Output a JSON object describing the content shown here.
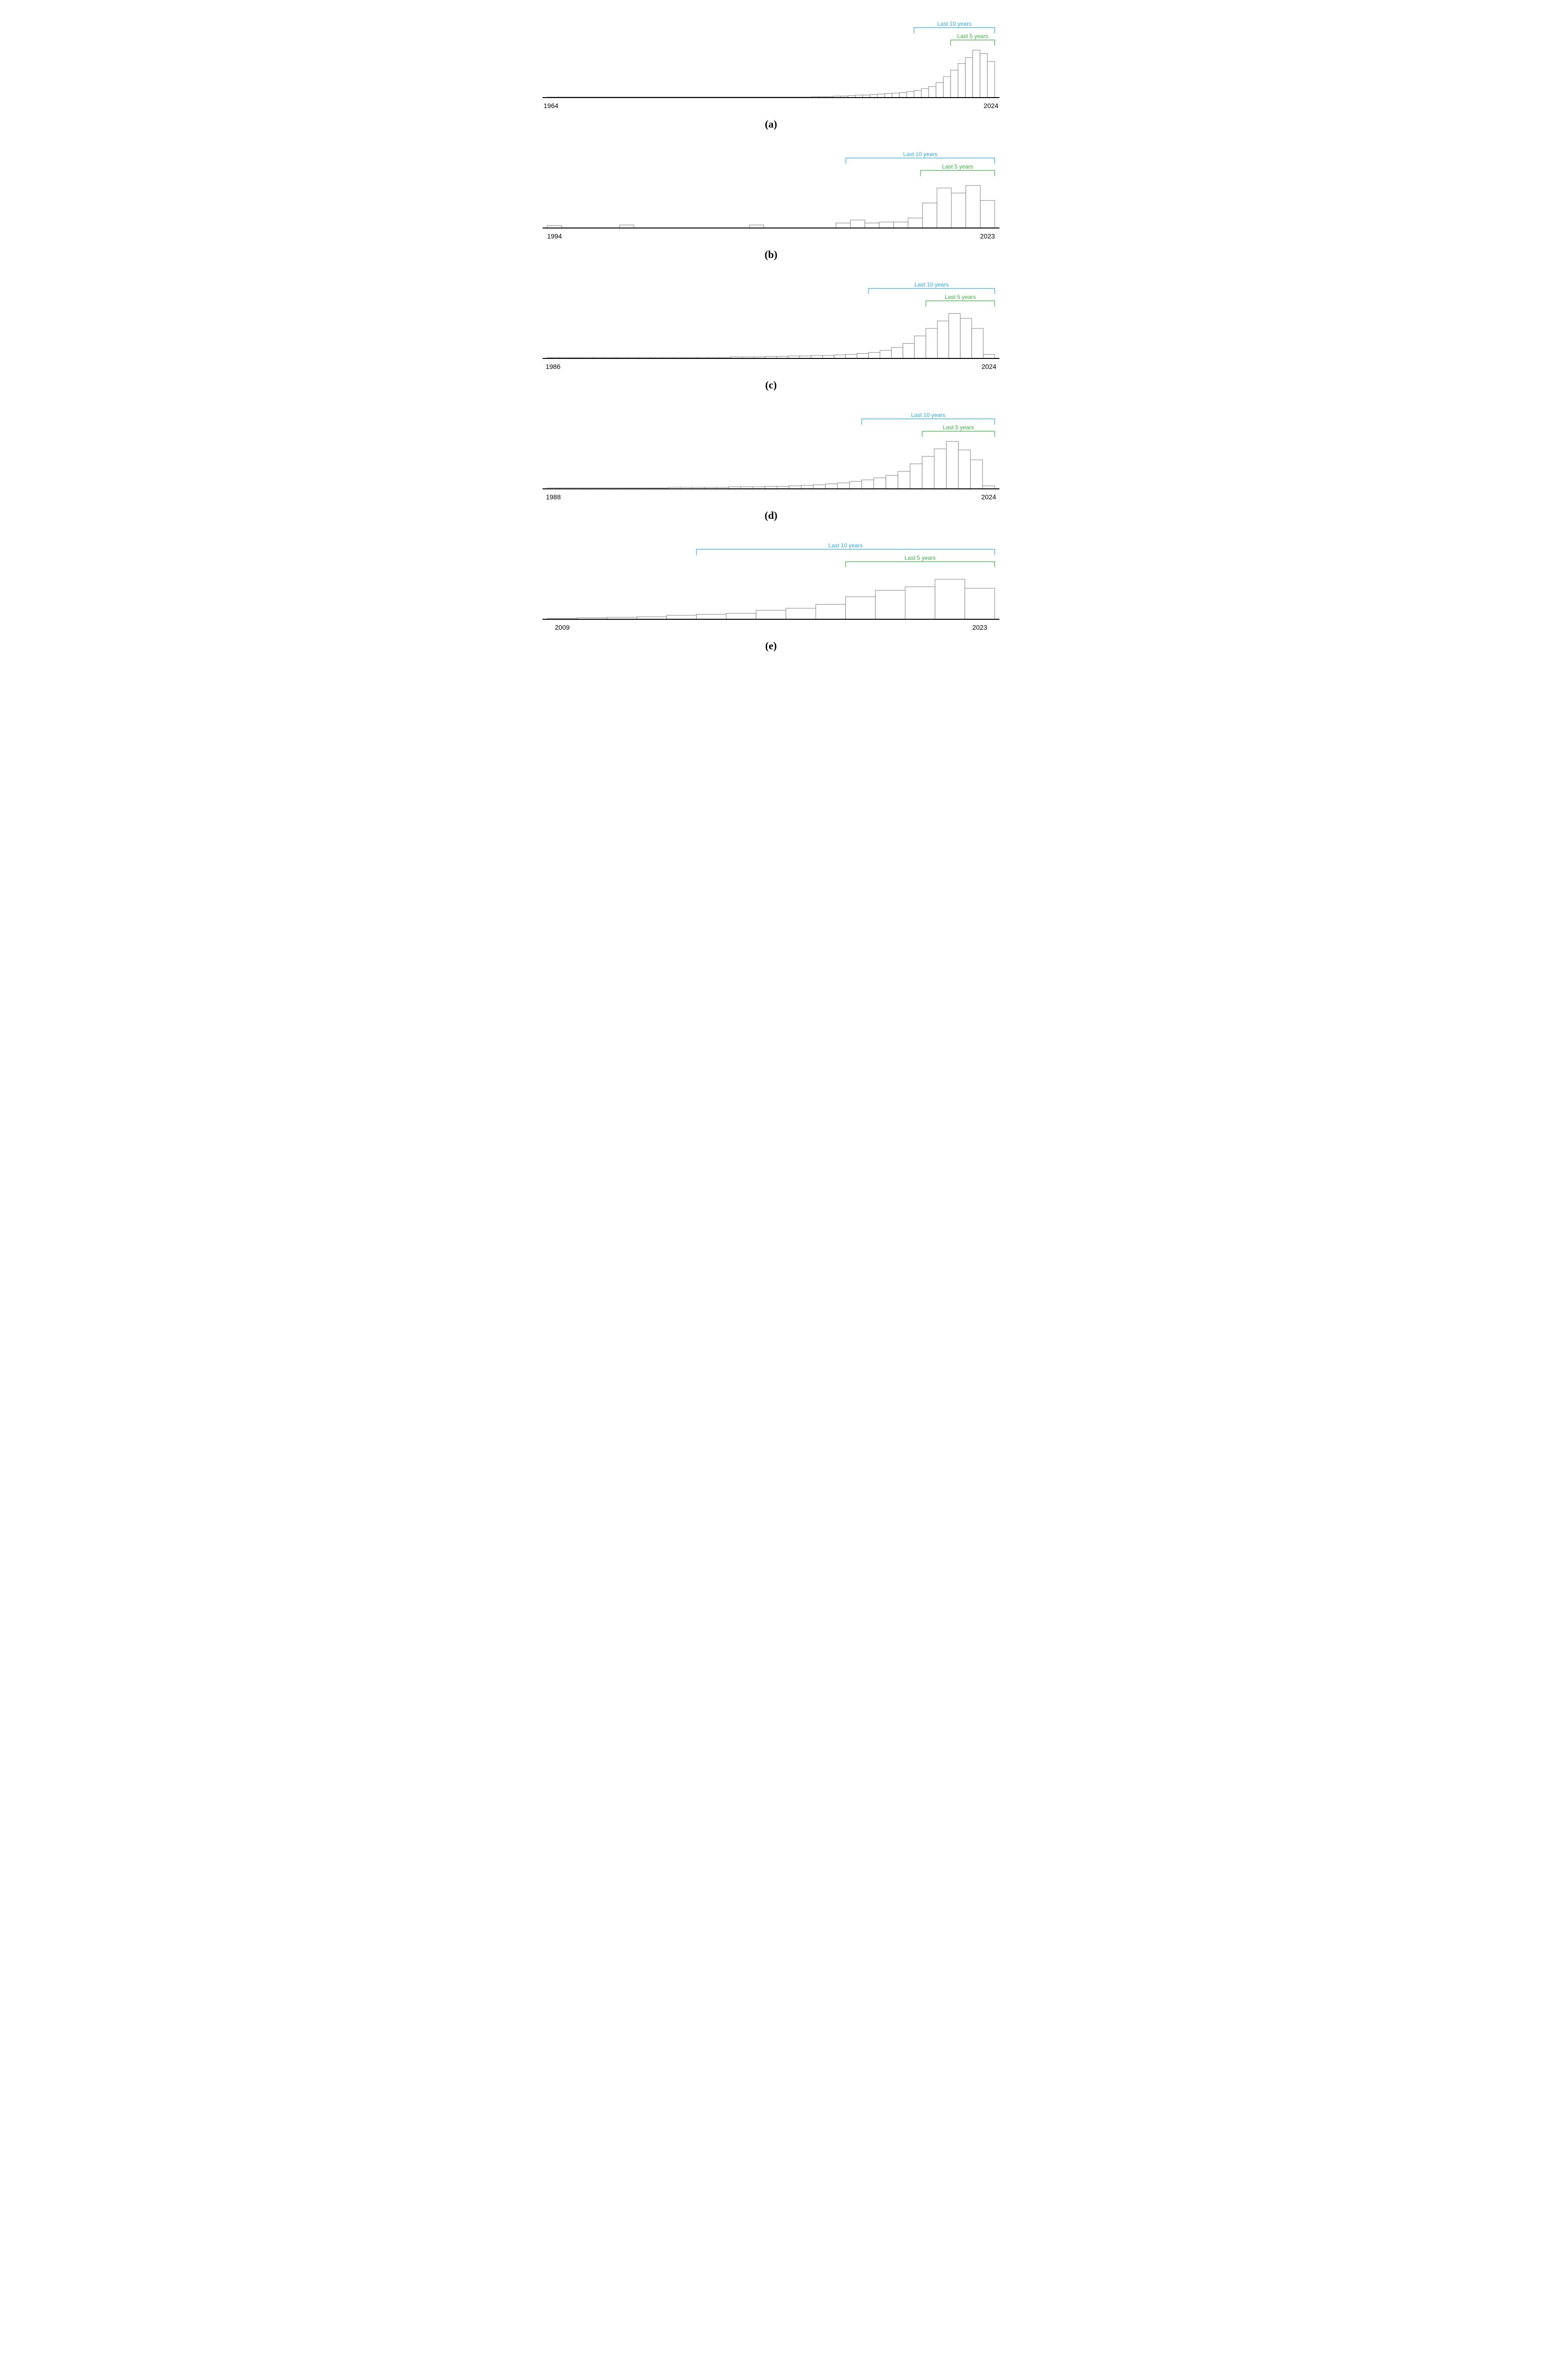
{
  "global": {
    "background_color": "#ffffff",
    "axis_color": "#000000",
    "axis_stroke_width": 2,
    "bar_fill": "#ffffff",
    "bar_stroke": "#808080",
    "bar_stroke_width": 1,
    "tick_font_size": 14,
    "tick_font_family": "Segoe UI, Tahoma, sans-serif",
    "tick_color": "#000000",
    "panel_label_font_size": 22,
    "panel_label_font_family": "Book Antiqua, Palatino, serif",
    "bracket_inner_color": "#3cb043",
    "bracket_outer_color": "#29abe2",
    "bracket_stroke_width": 1.2,
    "bracket_label_font_size": 12,
    "bracket_inner_label": "Last 5 years",
    "bracket_outer_label": "Last 10 years"
  },
  "panels": [
    {
      "id": "a",
      "label": "(a)",
      "type": "bar",
      "x_start": 1964,
      "x_end": 2024,
      "ylim": [
        0,
        100
      ],
      "bracket_outer_start": 2014,
      "bracket_inner_start": 2019,
      "values": [
        1,
        1,
        1,
        1,
        1,
        1,
        1,
        1,
        1,
        1,
        1,
        1,
        1,
        1,
        1,
        1,
        1,
        1,
        1,
        1,
        1,
        1,
        1,
        1,
        1,
        1,
        1,
        1,
        1,
        1,
        1,
        1,
        1,
        1,
        1,
        1,
        2,
        2,
        2,
        3,
        3,
        4,
        5,
        5,
        6,
        7,
        8,
        9,
        10,
        12,
        14,
        18,
        22,
        30,
        42,
        55,
        68,
        80,
        95,
        88,
        72
      ],
      "x_tick_left": "1964",
      "x_tick_right": "2024"
    },
    {
      "id": "b",
      "label": "(b)",
      "type": "bar",
      "x_start": 1994,
      "x_end": 2023,
      "ylim": [
        0,
        100
      ],
      "bracket_outer_start": 2014,
      "bracket_inner_start": 2019,
      "values": [
        5,
        0,
        0,
        0,
        0,
        6,
        0,
        0,
        0,
        0,
        0,
        0,
        0,
        0,
        6,
        0,
        0,
        0,
        0,
        0,
        10,
        16,
        10,
        12,
        12,
        20,
        50,
        80,
        70,
        85,
        55
      ],
      "x_tick_left": "1994",
      "x_tick_right": "2023"
    },
    {
      "id": "c",
      "label": "(c)",
      "type": "bar",
      "x_start": 1986,
      "x_end": 2024,
      "ylim": [
        0,
        100
      ],
      "bracket_outer_start": 2014,
      "bracket_inner_start": 2019,
      "values": [
        2,
        2,
        2,
        2,
        2,
        2,
        2,
        2,
        2,
        2,
        2,
        2,
        2,
        2,
        2,
        2,
        3,
        3,
        3,
        4,
        4,
        5,
        5,
        6,
        6,
        7,
        8,
        10,
        12,
        16,
        22,
        30,
        45,
        60,
        75,
        90,
        80,
        60,
        8
      ],
      "x_tick_left": "1986",
      "x_tick_right": "2024"
    },
    {
      "id": "d",
      "label": "(d)",
      "type": "bar",
      "x_start": 1988,
      "x_end": 2024,
      "ylim": [
        0,
        100
      ],
      "bracket_outer_start": 2014,
      "bracket_inner_start": 2019,
      "values": [
        2,
        2,
        2,
        2,
        2,
        2,
        2,
        2,
        2,
        2,
        3,
        3,
        3,
        3,
        3,
        4,
        4,
        4,
        5,
        5,
        6,
        7,
        8,
        10,
        12,
        15,
        18,
        22,
        27,
        35,
        50,
        65,
        80,
        95,
        78,
        58,
        6
      ],
      "x_tick_left": "1988",
      "x_tick_right": "2024"
    },
    {
      "id": "e",
      "label": "(e)",
      "type": "bar",
      "x_start": 2009,
      "x_end": 2023,
      "ylim": [
        0,
        100
      ],
      "bracket_outer_start": 2014,
      "bracket_inner_start": 2019,
      "values": [
        2,
        3,
        4,
        5,
        8,
        10,
        12,
        18,
        22,
        30,
        45,
        58,
        65,
        80,
        62
      ],
      "x_tick_left": "2009",
      "x_tick_right": "2023"
    }
  ]
}
